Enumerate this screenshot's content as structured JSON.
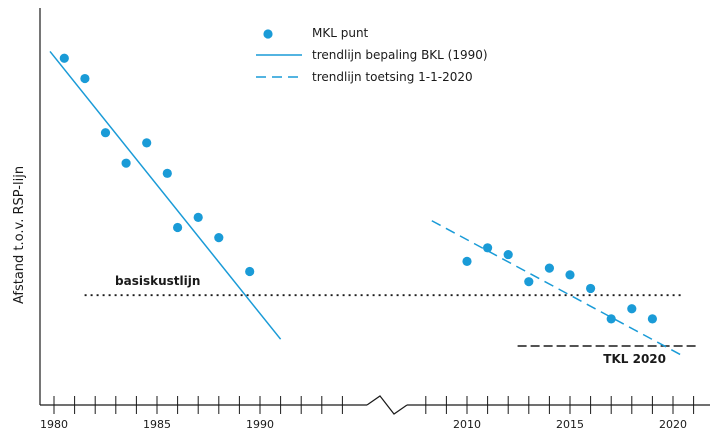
{
  "chart_data": {
    "type": "scatter",
    "ylabel": "Afstand t.o.v. RSP-lijn",
    "xlabel": "",
    "title": "",
    "x_ticks": [
      1980,
      1985,
      1990,
      2010,
      2015,
      2020
    ],
    "axis_break": "between 1990 and 2010",
    "legend": {
      "placement": "top-center",
      "items": [
        {
          "label": "MKL punt",
          "style": "dot"
        },
        {
          "label": "trendlijn bepaling BKL (1990)",
          "style": "solid"
        },
        {
          "label": "trendlijn toetsing 1-1-2020",
          "style": "dashed"
        }
      ]
    },
    "series": [
      {
        "name": "MKL punt",
        "x": [
          1980.5,
          1981.5,
          1982.5,
          1983.5,
          1984.5,
          1985.5,
          1986,
          1987,
          1988,
          1989.5,
          2010,
          2011,
          2012,
          2013,
          2014,
          2015,
          2016,
          2017,
          2018,
          2019
        ],
        "y": [
          88,
          82,
          66,
          57,
          63,
          54,
          38,
          41,
          35,
          25,
          28,
          32,
          30,
          22,
          26,
          24,
          20,
          11,
          14,
          11
        ]
      }
    ],
    "trend_bkl": {
      "x": [
        1980,
        1991
      ],
      "y": [
        90,
        5
      ]
    },
    "trend_toetsing": {
      "x": [
        2008,
        2020.5
      ],
      "y": [
        40,
        0
      ]
    },
    "reference_lines": [
      {
        "label": "basiskustlijn",
        "y": 18,
        "x_from": 1981,
        "x_to": 2021,
        "style": "dotted"
      },
      {
        "label": "TKL 2020",
        "y": 3,
        "x_from": 2011,
        "x_to": 2021,
        "style": "dashed"
      }
    ],
    "ylim": [
      -10,
      100
    ],
    "grid": false,
    "colors": {
      "series": "#1a9bd7",
      "reference": "#1a1a1a",
      "axis": "#1a1a1a"
    }
  }
}
